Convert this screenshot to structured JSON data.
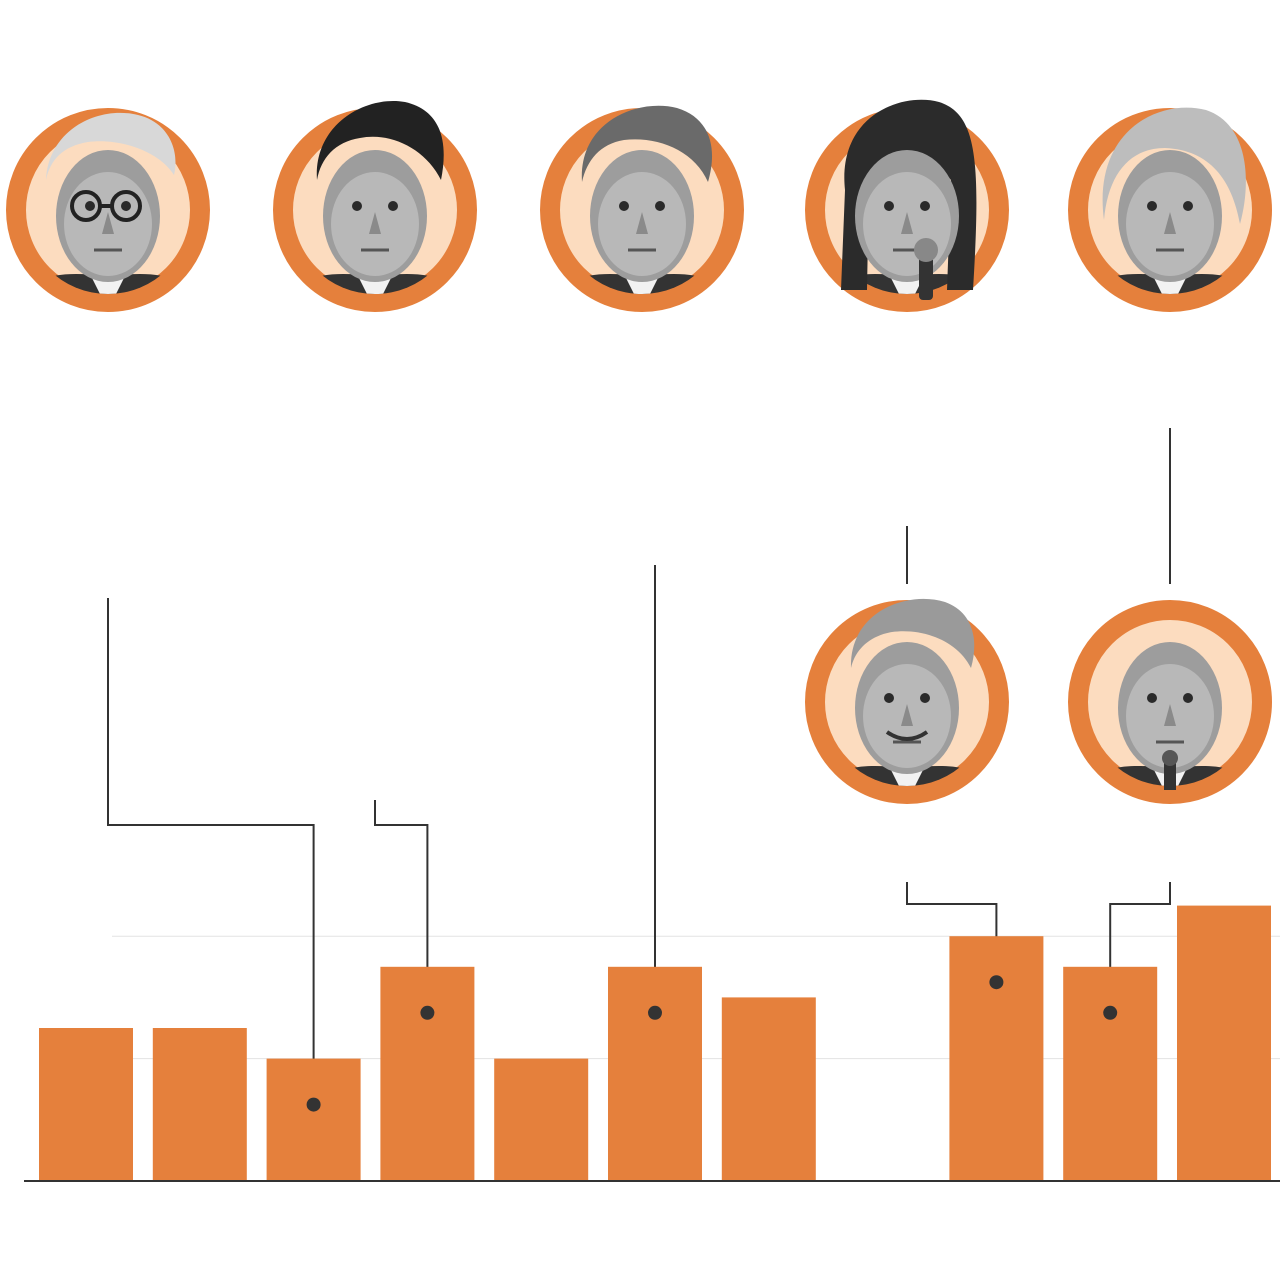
{
  "colors": {
    "bar": "#E5803C",
    "ring": "#E5803C",
    "portrait_bg": "#FCDCBF",
    "connector": "#333333",
    "gridline": "#E3E3E3",
    "baseline": "#333333"
  },
  "chart_data": {
    "type": "bar",
    "title": "",
    "xlabel": "",
    "ylabel": "",
    "ylim": [
      0,
      9
    ],
    "grid": true,
    "gridlines_at": [
      4,
      8
    ],
    "values": [
      5,
      5,
      4,
      7,
      4,
      7,
      6,
      null,
      8,
      7,
      9
    ],
    "annotations": [
      {
        "portrait": "portrait-1",
        "bar_index": 2
      },
      {
        "portrait": "portrait-2",
        "bar_index": 3
      },
      {
        "portrait": "portrait-3",
        "bar_index": 5
      },
      {
        "portrait": "portrait-6",
        "bar_index": 8
      },
      {
        "portrait": "portrait-7",
        "bar_index": 9
      }
    ]
  },
  "portraits": [
    {
      "id": "portrait-1",
      "icon": "elderly-man-glasses-portrait"
    },
    {
      "id": "portrait-2",
      "icon": "dark-haired-man-portrait"
    },
    {
      "id": "portrait-3",
      "icon": "gray-haired-man-portrait"
    },
    {
      "id": "portrait-4",
      "icon": "woman-long-hair-microphone-portrait"
    },
    {
      "id": "portrait-5",
      "icon": "woman-short-blonde-hair-portrait"
    },
    {
      "id": "portrait-6",
      "icon": "tall-man-smiling-portrait"
    },
    {
      "id": "portrait-7",
      "icon": "bald-man-podium-portrait"
    }
  ]
}
